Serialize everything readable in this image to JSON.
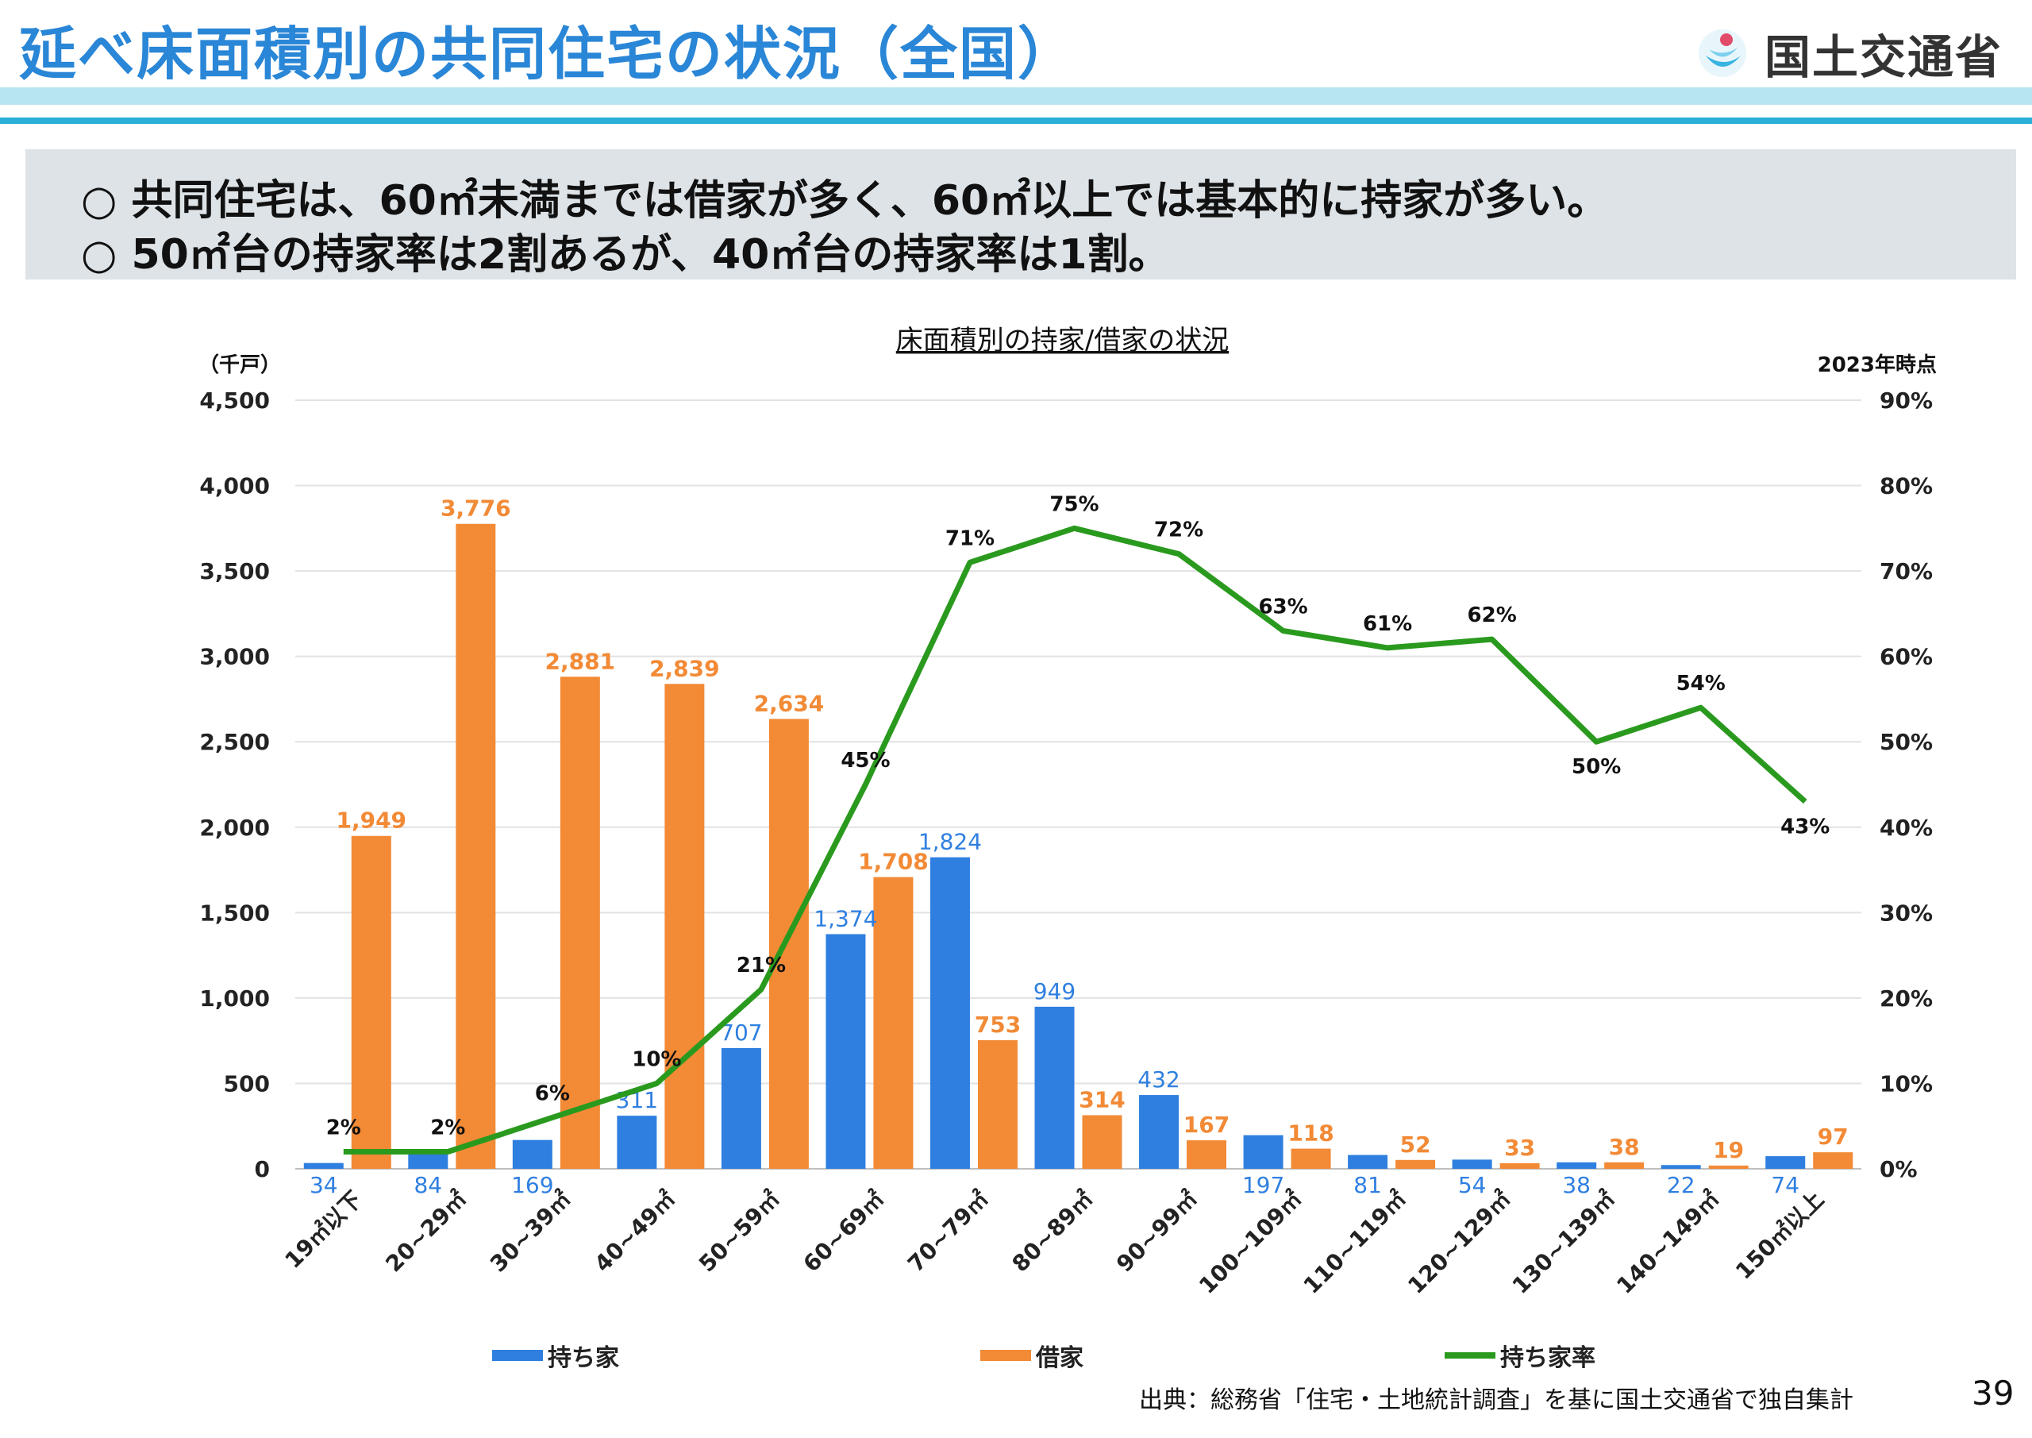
{
  "header": {
    "title": "延べ床面積別の共同住宅の状況（全国）",
    "logo_text": "国土交通省"
  },
  "summary": {
    "lines": [
      "○ 共同住宅は、60㎡未満までは借家が多く、60㎡以上では基本的に持家が多い。",
      "○ 50㎡台の持家率は2割あるが、40㎡台の持家率は1割。"
    ]
  },
  "footer": {
    "source": "出典：総務省「住宅・土地統計調査」を基に国土交通省で独自集計",
    "page_number": "39"
  },
  "colors": {
    "owned": "#2f7fe0",
    "rented": "#f28a36",
    "rate": "#2a9a1e",
    "title": "#2a86d6"
  },
  "chart_data": {
    "type": "bar",
    "title": "床面積別の持家/借家の状況",
    "note": "2023年時点",
    "ylabel": "（千戸）",
    "ylim": [
      0,
      4500
    ],
    "y_ticks": [
      "0",
      "500",
      "1,000",
      "1,500",
      "2,000",
      "2,500",
      "3,000",
      "3,500",
      "4,000",
      "4,500"
    ],
    "y2lim": [
      0,
      90
    ],
    "y2_ticks": [
      "0%",
      "10%",
      "20%",
      "30%",
      "40%",
      "50%",
      "60%",
      "70%",
      "80%",
      "90%"
    ],
    "grid": true,
    "legend_position": "bottom",
    "categories": [
      "19㎡以下",
      "20~29㎡",
      "30~39㎡",
      "40~49㎡",
      "50~59㎡",
      "60~69㎡",
      "70~79㎡",
      "80~89㎡",
      "90~99㎡",
      "100~109㎡",
      "110~119㎡",
      "120~129㎡",
      "130~139㎡",
      "140~149㎡",
      "150㎡以上"
    ],
    "series": [
      {
        "name": "持ち家",
        "type": "bar",
        "axis": "left",
        "values": [
          34,
          84,
          169,
          311,
          707,
          1374,
          1824,
          949,
          432,
          197,
          81,
          54,
          38,
          22,
          74
        ],
        "labels": [
          "34",
          "84",
          "169",
          "311",
          "707",
          "1,374",
          "1,824",
          "949",
          "432",
          "197",
          "81",
          "54",
          "38",
          "22",
          "74"
        ]
      },
      {
        "name": "借家",
        "type": "bar",
        "axis": "left",
        "values": [
          1949,
          3776,
          2881,
          2839,
          2634,
          1708,
          753,
          314,
          167,
          118,
          52,
          33,
          38,
          19,
          97
        ],
        "labels": [
          "1,949",
          "3,776",
          "2,881",
          "2,839",
          "2,634",
          "1,708",
          "753",
          "314",
          "167",
          "118",
          "52",
          "33",
          "38",
          "19",
          "97"
        ]
      },
      {
        "name": "持ち家率",
        "type": "line",
        "axis": "right",
        "values": [
          2,
          2,
          6,
          10,
          21,
          45,
          71,
          75,
          72,
          63,
          61,
          62,
          50,
          54,
          43
        ],
        "labels": [
          "2%",
          "2%",
          "6%",
          "10%",
          "21%",
          "45%",
          "71%",
          "75%",
          "72%",
          "63%",
          "61%",
          "62%",
          "50%",
          "54%",
          "43%"
        ]
      }
    ]
  }
}
